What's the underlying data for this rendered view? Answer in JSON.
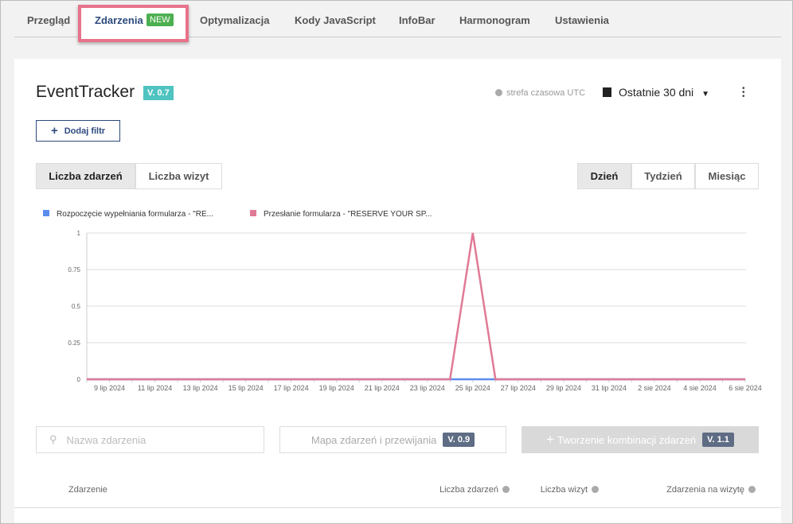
{
  "tabs": [
    "Przegląd",
    "Zdarzenia",
    "Optymalizacja",
    "Kody JavaScript",
    "InfoBar",
    "Harmonogram",
    "Ustawienia"
  ],
  "new_badge": "NEW",
  "header": {
    "title": "EventTracker",
    "version": "V. 0.7",
    "timezone": "strefa czasowa UTC",
    "date_range": "Ostatnie 30 dni"
  },
  "add_filter": "Dodaj filtr",
  "metric_toggle": [
    "Liczba zdarzeń",
    "Liczba wizyt"
  ],
  "period_toggle": [
    "Dzień",
    "Tydzień",
    "Miesiąc"
  ],
  "chart_data": {
    "type": "line",
    "categories": [
      null,
      "9 lip 2024",
      null,
      "11 lip 2024",
      null,
      "13 lip 2024",
      null,
      "15 lip 2024",
      null,
      "17 lip 2024",
      null,
      "19 lip 2024",
      null,
      "21 lip 2024",
      null,
      "23 lip 2024",
      null,
      "25 lip 2024",
      null,
      "27 lip 2024",
      null,
      "29 lip 2024",
      null,
      "31 lip 2024",
      null,
      "2 sie 2024",
      null,
      "4 sie 2024",
      null,
      "6 sie 2024"
    ],
    "series": [
      {
        "name": "Rozpoczęcie wypełniania formularza - \"RE...",
        "color": "#5b8def",
        "values": [
          0,
          0,
          0,
          0,
          0,
          0,
          0,
          0,
          0,
          0,
          0,
          0,
          0,
          0,
          0,
          0,
          0,
          0,
          0,
          0,
          0,
          0,
          0,
          0,
          0,
          0,
          0,
          0,
          0,
          0
        ]
      },
      {
        "name": "Przesłanie formularza - \"RESERVE YOUR SP...",
        "color": "#e07a96",
        "values": [
          0,
          0,
          0,
          0,
          0,
          0,
          0,
          0,
          0,
          0,
          0,
          0,
          0,
          0,
          0,
          0,
          0,
          1,
          0,
          0,
          0,
          0,
          0,
          0,
          0,
          0,
          0,
          0,
          0,
          0
        ]
      }
    ],
    "ylim": [
      0,
      1
    ],
    "yticks": [
      0,
      0.25,
      0.5,
      0.75,
      1
    ],
    "grid": true
  },
  "toolbar": {
    "search_placeholder": "Nazwa zdarzenia",
    "map_button": "Mapa zdarzeń i przewijania",
    "map_version": "V. 0.9",
    "combo_button": "Tworzenie kombinacji zdarzeń",
    "combo_version": "V. 1.1"
  },
  "table": {
    "columns": [
      "Zdarzenie",
      "Liczba zdarzeń",
      "Liczba wizyt",
      "Zdarzenia na wizytę"
    ]
  }
}
